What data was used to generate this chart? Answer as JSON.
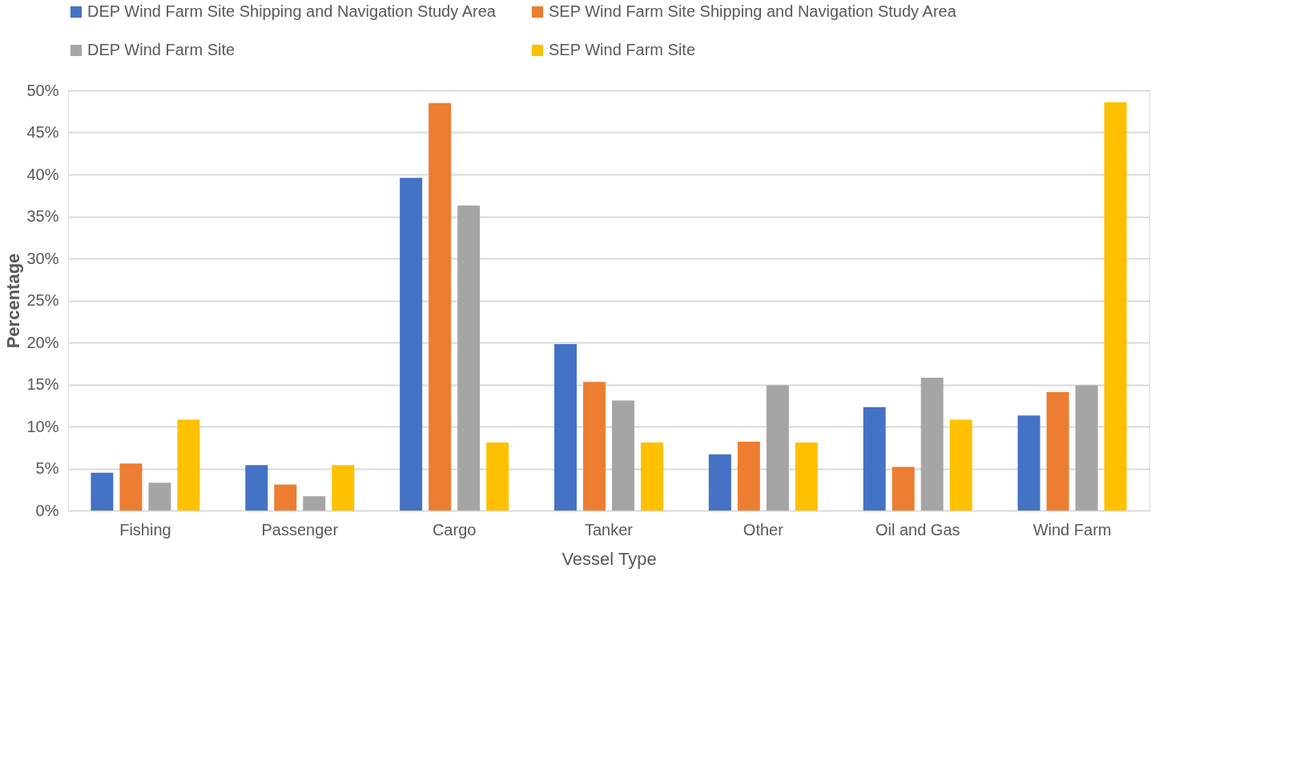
{
  "chart_data": {
    "type": "bar",
    "xlabel": "Vessel Type",
    "ylabel": "Percentage",
    "categories": [
      "Fishing",
      "Passenger",
      "Cargo",
      "Tanker",
      "Other",
      "Oil and Gas",
      "Wind Farm"
    ],
    "series": [
      {
        "name": "DEP Wind Farm Site Shipping and Navigation Study Area",
        "color": "#4472c4",
        "values": [
          4.5,
          5.4,
          39.6,
          19.8,
          6.7,
          12.3,
          11.3
        ]
      },
      {
        "name": "SEP Wind Farm Site Shipping and Navigation Study Area",
        "color": "#ed7d31",
        "values": [
          5.6,
          3.1,
          48.5,
          15.3,
          8.2,
          5.2,
          14.1
        ]
      },
      {
        "name": "DEP Wind Farm Site",
        "color": "#a5a5a5",
        "values": [
          3.3,
          1.7,
          36.3,
          13.1,
          14.9,
          15.8,
          14.9
        ]
      },
      {
        "name": "SEP Wind Farm Site",
        "color": "#ffc000",
        "values": [
          10.8,
          5.4,
          8.1,
          8.1,
          8.1,
          10.8,
          48.6
        ]
      }
    ],
    "ylim": [
      0,
      50
    ],
    "yticks": [
      {
        "value": 0,
        "label": "0%"
      },
      {
        "value": 5,
        "label": "5%"
      },
      {
        "value": 10,
        "label": "10%"
      },
      {
        "value": 15,
        "label": "15%"
      },
      {
        "value": 20,
        "label": "20%"
      },
      {
        "value": 25,
        "label": "25%"
      },
      {
        "value": 30,
        "label": "30%"
      },
      {
        "value": 35,
        "label": "35%"
      },
      {
        "value": 40,
        "label": "40%"
      },
      {
        "value": 45,
        "label": "45%"
      },
      {
        "value": 50,
        "label": "50%"
      }
    ],
    "grid": "y",
    "legend": "top left"
  }
}
